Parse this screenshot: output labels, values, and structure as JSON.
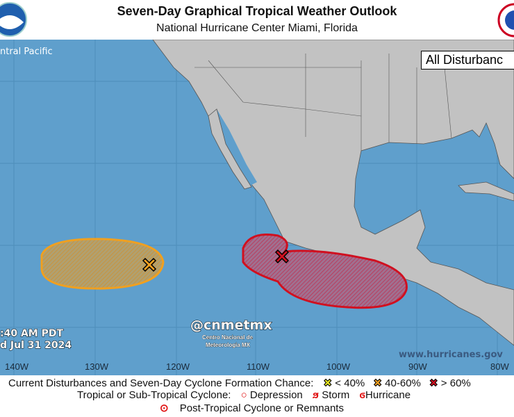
{
  "header": {
    "title": "Seven-Day Graphical Tropical Weather Outlook",
    "subtitle": "National Hurricane Center  Miami, Florida"
  },
  "map": {
    "region_label": "ntral Pacific",
    "view_box_label": "All Disturbanc",
    "time_line1": ":40 AM PDT",
    "time_line2": "d Jul 31 2024",
    "watermark_handle": "@cnmetmx",
    "watermark_org1": "Centro Nacional de",
    "watermark_org2": "Meteorologia MX",
    "website": "www.hurricanes.gov",
    "longitudes": [
      "140W",
      "130W",
      "120W",
      "110W",
      "100W",
      "90W",
      "80W"
    ],
    "colors": {
      "ocean": "#5f9fcc",
      "land": "#c2c2c2",
      "low": "#f0a020",
      "high": "#d01020"
    },
    "disturbances": [
      {
        "chance": "40-60%",
        "color": "#f0a020"
      },
      {
        "chance": "> 60%",
        "color": "#d01020"
      }
    ]
  },
  "legend": {
    "row1_label": "Current Disturbances and Seven-Day Cyclone Formation Chance:",
    "low": "< 40%",
    "mid": "40-60%",
    "high": "> 60%",
    "row2_label": "Tropical or Sub-Tropical Cyclone:",
    "depression": "Depression",
    "storm": "Storm",
    "hurricane": "Hurricane",
    "post": "Post-Tropical Cyclone or Remnants"
  }
}
